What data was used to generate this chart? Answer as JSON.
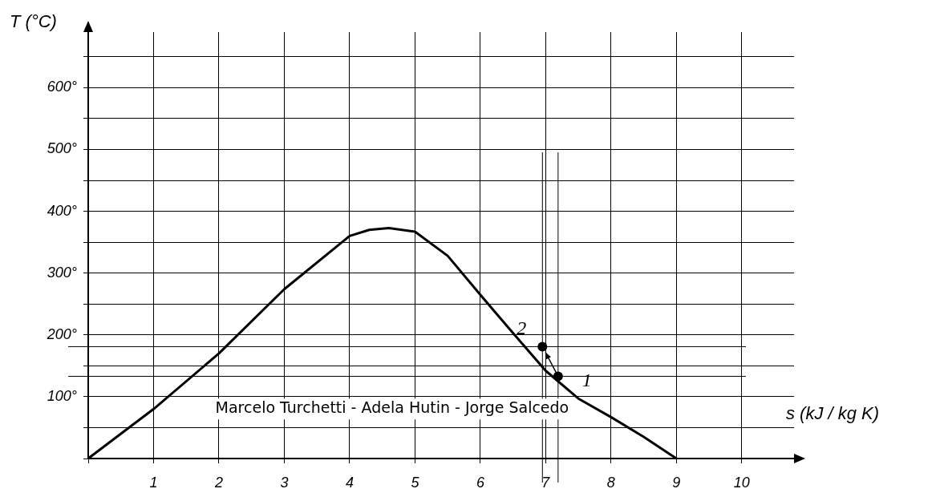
{
  "chart_data": {
    "type": "line",
    "xlabel": "s (kJ / kg K)",
    "ylabel": "T (°C)",
    "xlim": [
      0,
      10.8
    ],
    "ylim": [
      0,
      690
    ],
    "xticks": [
      {
        "value": 0,
        "label": null
      },
      1,
      2,
      3,
      4,
      5,
      6,
      7,
      8,
      9,
      10
    ],
    "yticks": [
      {
        "value": 0,
        "label": null
      },
      {
        "value": 50,
        "label": null
      },
      {
        "value": 100,
        "label": "100°"
      },
      {
        "value": 150,
        "label": null
      },
      {
        "value": 200,
        "label": "200°"
      },
      {
        "value": 250,
        "label": null
      },
      {
        "value": 300,
        "label": "300°"
      },
      {
        "value": 350,
        "label": null
      },
      {
        "value": 400,
        "label": "400°"
      },
      {
        "value": 450,
        "label": null
      },
      {
        "value": 500,
        "label": "500°"
      },
      {
        "value": 550,
        "label": null
      },
      {
        "value": 600,
        "label": "600°"
      },
      {
        "value": 650,
        "label": null
      }
    ],
    "grid": true,
    "legend": false,
    "series": [
      {
        "type": "line",
        "color": "#000000",
        "x": [
          0,
          1,
          2,
          3,
          4,
          4.3,
          4.6,
          5,
          5.5,
          6,
          6.5,
          7,
          7.5,
          8,
          8.5,
          9
        ],
        "values": [
          0,
          80,
          170,
          274,
          360,
          370,
          373,
          367,
          328,
          265,
          203,
          142,
          97,
          67,
          35,
          0
        ],
        "line_style": "solid"
      },
      {
        "type": "scatter",
        "color": "#000000",
        "x": [
          7.19,
          6.95
        ],
        "values": [
          133,
          181
        ],
        "marker": "circle"
      }
    ],
    "ref_lines": [
      {
        "axis": "y",
        "value": 133,
        "color": "#000000"
      },
      {
        "axis": "y",
        "value": 181,
        "color": "#000000"
      },
      {
        "axis": "x",
        "value": 6.95,
        "color": "#000000"
      },
      {
        "axis": "x",
        "value": 7.19,
        "color": "#000000"
      }
    ],
    "annotations": [
      "Marcelo Turchetti - Adela Hutin - Jorge Salcedo",
      {
        "text": "1",
        "x": 7.19,
        "y": 133
      },
      {
        "text": "2",
        "x": 6.95,
        "y": 181
      }
    ]
  }
}
